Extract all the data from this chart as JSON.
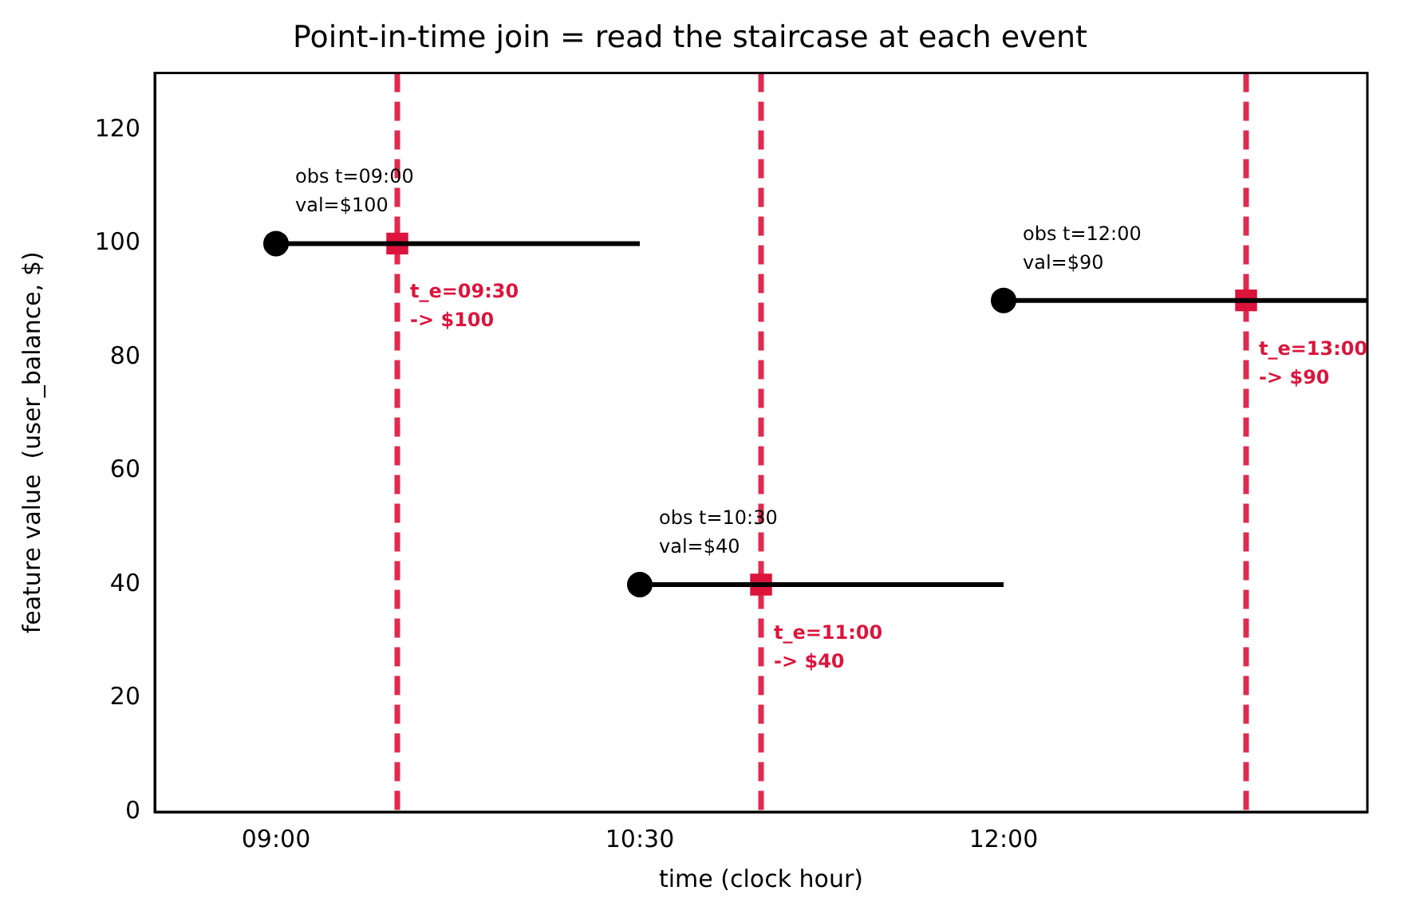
{
  "chart_data": {
    "type": "line",
    "title": "Point-in-time join = read the staircase at each event",
    "xlabel": "time (clock hour)",
    "ylabel": "feature value  (user_balance, $)",
    "xlim": [
      8.5,
      13.5
    ],
    "xticks": [
      {
        "value": 9,
        "label": "09:00"
      },
      {
        "value": 10.5,
        "label": "10:30"
      },
      {
        "value": 12,
        "label": "12:00"
      }
    ],
    "ylim": [
      0,
      130
    ],
    "yticks": [
      0,
      20,
      40,
      60,
      80,
      100,
      120
    ],
    "grid": false,
    "legend": false,
    "series": [
      {
        "type": "line",
        "color": "#000000",
        "marker": "none",
        "line_style": "solid",
        "x": [
          9,
          10.5
        ],
        "values": [
          100,
          100
        ]
      },
      {
        "type": "line",
        "color": "#000000",
        "marker": "none",
        "line_style": "solid",
        "x": [
          10.5,
          12
        ],
        "values": [
          40,
          40
        ]
      },
      {
        "type": "line",
        "color": "#000000",
        "marker": "none",
        "line_style": "solid",
        "x": [
          12,
          13.5
        ],
        "values": [
          90,
          90
        ]
      },
      {
        "type": "scatter",
        "color": "#000000",
        "marker": "circle",
        "x": [
          9,
          10.5,
          12
        ],
        "values": [
          100,
          40,
          90
        ]
      },
      {
        "type": "scatter",
        "color": "#dc143c",
        "marker": "square",
        "x": [
          9.5,
          11,
          13
        ],
        "values": [
          100,
          40,
          90
        ]
      }
    ],
    "ref_lines": [
      {
        "axis": "x",
        "value": 9.5,
        "color": "#dc143c",
        "line_style": "dashed"
      },
      {
        "axis": "x",
        "value": 11,
        "color": "#dc143c",
        "line_style": "dashed"
      },
      {
        "axis": "x",
        "value": 13,
        "color": "#dc143c",
        "line_style": "dashed"
      }
    ],
    "annotations": [
      {
        "text": "obs t=09:00\nval=$100",
        "x": 9,
        "y": 100
      },
      {
        "text": "obs t=10:30\nval=$40",
        "x": 10.5,
        "y": 40
      },
      {
        "text": "obs t=12:00\nval=$90",
        "x": 12,
        "y": 90
      },
      {
        "text": "t_e=09:30\n-> $100",
        "x": 9.5,
        "y": 100
      },
      {
        "text": "t_e=11:00\n-> $40",
        "x": 11,
        "y": 40
      },
      {
        "text": "t_e=13:00\n-> $90",
        "x": 13,
        "y": 90
      }
    ]
  }
}
